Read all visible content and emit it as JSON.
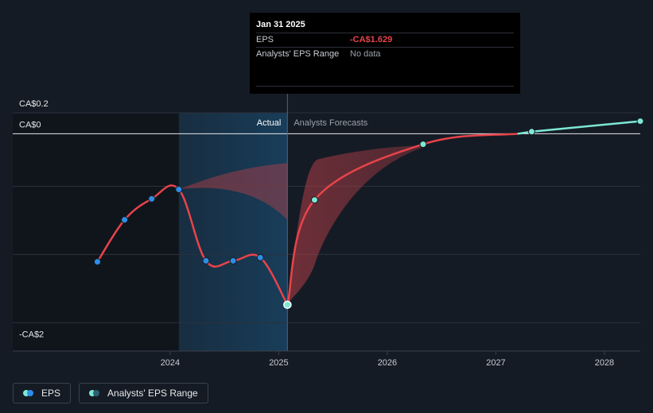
{
  "chart_data": {
    "type": "line",
    "title": "",
    "y_axis": {
      "ylim": [
        -2.07,
        0.2
      ],
      "tick_labels": [
        "CA$0.2",
        "CA$0",
        "-CA$2"
      ],
      "tick_values": [
        0.2,
        0,
        -2
      ]
    },
    "x_axis": {
      "xlim": [
        2022.55,
        2028.33
      ],
      "tick_labels": [
        "2024",
        "2025",
        "2026",
        "2027",
        "2028"
      ],
      "tick_values": [
        2024,
        2025,
        2026,
        2027,
        2028
      ]
    },
    "section_labels": {
      "actual": "Actual",
      "forecast": "Analysts Forecasts"
    },
    "divider_x": 2025.08,
    "shaded_start_x": 2024.08,
    "series": [
      {
        "name": "EPS (actual)",
        "color": "#e8434a",
        "points": [
          {
            "x": 2023.33,
            "y": -1.22
          },
          {
            "x": 2023.58,
            "y": -0.82
          },
          {
            "x": 2023.83,
            "y": -0.62
          },
          {
            "x": 2024.08,
            "y": -0.53
          },
          {
            "x": 2024.33,
            "y": -1.21
          },
          {
            "x": 2024.58,
            "y": -1.21
          },
          {
            "x": 2024.83,
            "y": -1.18
          },
          {
            "x": 2025.08,
            "y": -1.629
          }
        ]
      },
      {
        "name": "EPS (forecast)",
        "color": "#e8434a",
        "points": [
          {
            "x": 2025.08,
            "y": -1.629
          },
          {
            "x": 2025.33,
            "y": -0.63
          },
          {
            "x": 2026.33,
            "y": -0.1
          },
          {
            "x": 2027.33,
            "y": 0.02
          },
          {
            "x": 2028.33,
            "y": 0.12
          }
        ]
      }
    ],
    "past_range_band": {
      "x": [
        2024.08,
        2025.08
      ],
      "upper": [
        -0.53,
        -0.28
      ],
      "lower": [
        -0.53,
        -0.82
      ]
    },
    "forecast_range_band": {
      "x": [
        2025.08,
        2025.33,
        2026.33
      ],
      "upper": [
        -1.629,
        -0.25,
        -0.11
      ],
      "lower": [
        -1.629,
        -1.25,
        -0.13
      ]
    },
    "profit_color": "#7de8d6",
    "tooltip": {
      "date": "Jan 31 2025",
      "rows": [
        {
          "label": "EPS",
          "value": "-CA$1.629"
        },
        {
          "label": "Analysts' EPS Range",
          "value": "No data"
        }
      ]
    },
    "legend": [
      {
        "label": "EPS",
        "colors": [
          "#7de8d6",
          "#2d8ee8"
        ]
      },
      {
        "label": "Analysts' EPS Range",
        "colors": [
          "#7de8d6",
          "#2d6070"
        ]
      }
    ]
  }
}
